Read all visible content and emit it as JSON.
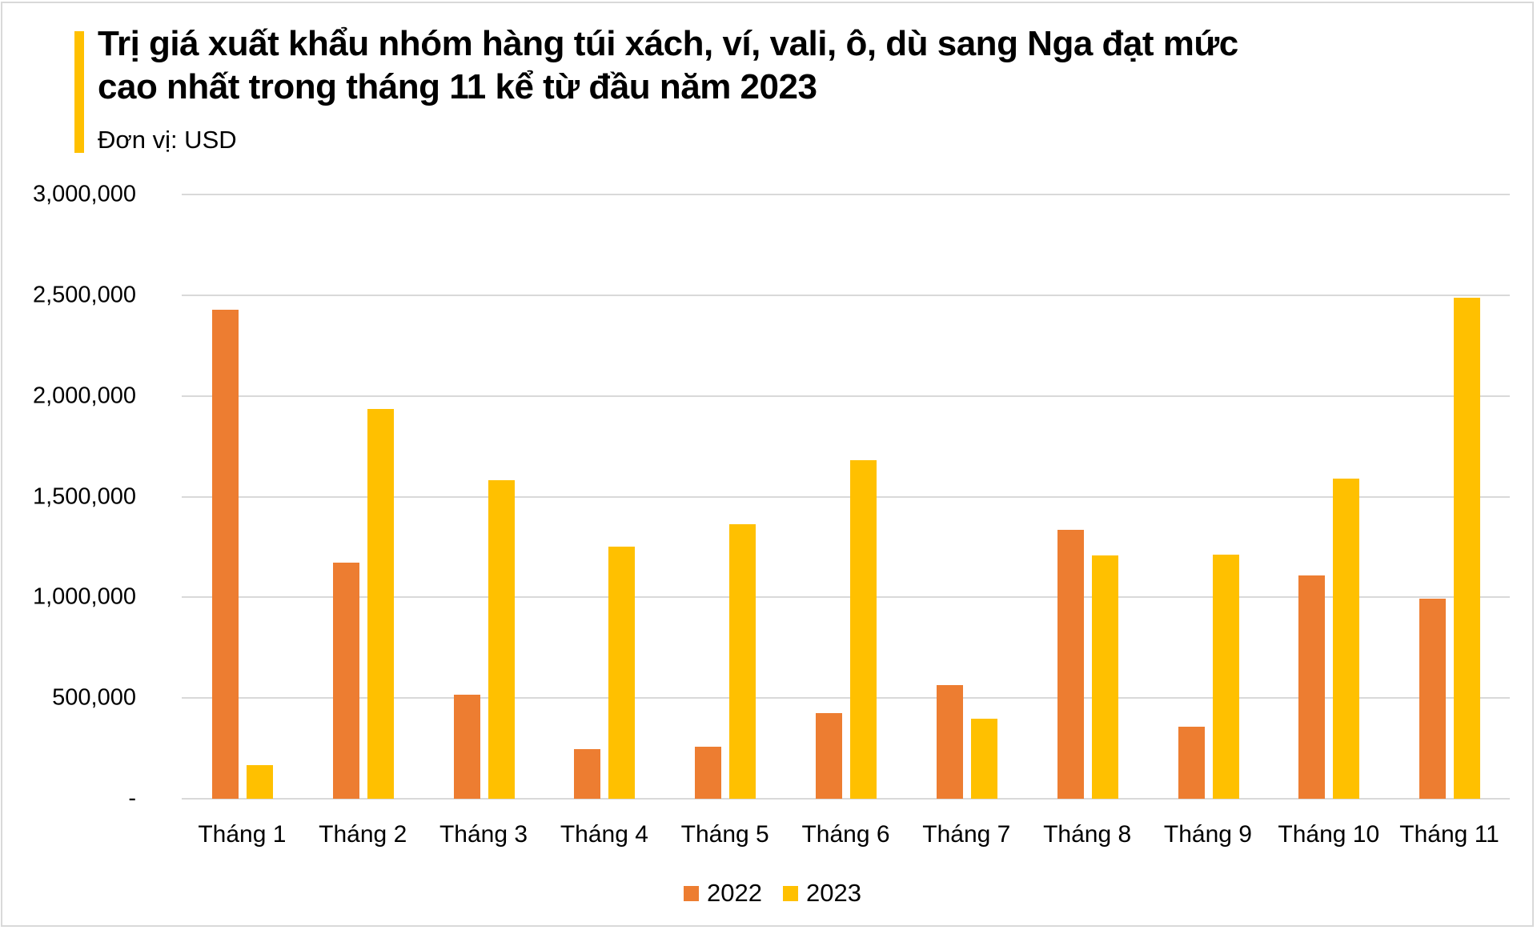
{
  "header": {
    "title": "Trị giá xuất khẩu nhóm hàng túi xách, ví, vali, ô, dù sang Nga đạt mức cao nhất trong tháng 11 kể từ đầu năm 2023",
    "title_line1": "Trị giá xuất khẩu nhóm hàng túi xách, ví, vali, ô, dù sang Nga đạt mức",
    "title_line2": "cao nhất trong tháng 11 kể từ đầu năm 2023",
    "subtitle": "Đơn vị: USD",
    "accent_color": "#ffc000"
  },
  "legend": [
    {
      "label": "2022",
      "color": "#ed7d31"
    },
    {
      "label": "2023",
      "color": "#ffc000"
    }
  ],
  "y_ticks": [
    "3,000,000",
    "2,500,000",
    "2,000,000",
    "1,500,000",
    "1,000,000",
    "500,000",
    "-"
  ],
  "chart_data": {
    "type": "bar",
    "title": "Trị giá xuất khẩu nhóm hàng túi xách, ví, vali, ô, dù sang Nga đạt mức cao nhất trong tháng 11 kể từ đầu năm 2023",
    "subtitle": "Đơn vị: USD",
    "xlabel": "",
    "ylabel": "USD",
    "ylim": [
      0,
      3000000
    ],
    "yticks": [
      0,
      500000,
      1000000,
      1500000,
      2000000,
      2500000,
      3000000
    ],
    "grid": true,
    "legend_position": "bottom",
    "categories": [
      "Tháng 1",
      "Tháng 2",
      "Tháng 3",
      "Tháng 4",
      "Tháng 5",
      "Tháng 6",
      "Tháng 7",
      "Tháng 8",
      "Tháng 9",
      "Tháng 10",
      "Tháng 11"
    ],
    "series": [
      {
        "name": "2022",
        "color": "#ed7d31",
        "values": [
          2429000,
          1173000,
          515000,
          245000,
          257000,
          424000,
          564000,
          1337000,
          357000,
          1107000,
          994000
        ]
      },
      {
        "name": "2023",
        "color": "#ffc000",
        "values": [
          168000,
          1934000,
          1582000,
          1253000,
          1361000,
          1682000,
          398000,
          1207000,
          1210000,
          1588000,
          2488000
        ]
      }
    ]
  }
}
